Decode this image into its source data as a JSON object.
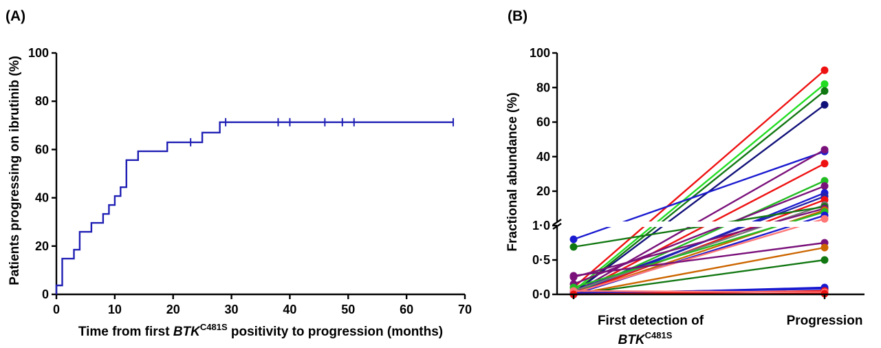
{
  "chart_data": [
    {
      "panel_label": "(A)",
      "type": "line",
      "subtype": "kaplan-meier-step",
      "xlabel_parts": [
        "Time from first ",
        "BTK",
        "C481S",
        " positivity to progression (months)"
      ],
      "ylabel": "Patients progressing on ibrutinib (%)",
      "xlim": [
        0,
        70
      ],
      "ylim": [
        0,
        100
      ],
      "xticks": [
        0,
        10,
        20,
        30,
        40,
        50,
        60,
        70
      ],
      "yticks": [
        0,
        20,
        40,
        60,
        80,
        100
      ],
      "line_color": "#1f1fb4",
      "steps": [
        {
          "x": 0,
          "y": 0
        },
        {
          "x": 0,
          "y": 3.7
        },
        {
          "x": 1,
          "y": 3.7
        },
        {
          "x": 1,
          "y": 14.8
        },
        {
          "x": 3,
          "y": 14.8
        },
        {
          "x": 3,
          "y": 18.5
        },
        {
          "x": 4,
          "y": 18.5
        },
        {
          "x": 4,
          "y": 25.9
        },
        {
          "x": 6,
          "y": 25.9
        },
        {
          "x": 6,
          "y": 29.6
        },
        {
          "x": 8,
          "y": 29.6
        },
        {
          "x": 8,
          "y": 33.3
        },
        {
          "x": 9,
          "y": 33.3
        },
        {
          "x": 9,
          "y": 37.0
        },
        {
          "x": 10,
          "y": 37.0
        },
        {
          "x": 10,
          "y": 40.7
        },
        {
          "x": 11,
          "y": 40.7
        },
        {
          "x": 11,
          "y": 44.4
        },
        {
          "x": 12,
          "y": 44.4
        },
        {
          "x": 12,
          "y": 55.6
        },
        {
          "x": 14,
          "y": 55.6
        },
        {
          "x": 14,
          "y": 59.3
        },
        {
          "x": 19,
          "y": 59.3
        },
        {
          "x": 19,
          "y": 63.0
        },
        {
          "x": 25,
          "y": 63.0
        },
        {
          "x": 25,
          "y": 67.0
        },
        {
          "x": 28,
          "y": 67.0
        },
        {
          "x": 28,
          "y": 71.3
        },
        {
          "x": 68,
          "y": 71.3
        }
      ],
      "censored": [
        {
          "x": 23,
          "y": 63.0
        },
        {
          "x": 29,
          "y": 71.3
        },
        {
          "x": 38,
          "y": 71.3
        },
        {
          "x": 40,
          "y": 71.3
        },
        {
          "x": 46,
          "y": 71.3
        },
        {
          "x": 49,
          "y": 71.3
        },
        {
          "x": 51,
          "y": 71.3
        },
        {
          "x": 68,
          "y": 71.3
        }
      ]
    },
    {
      "panel_label": "(B)",
      "type": "line",
      "subtype": "paired-dot",
      "ylabel": "Fractional abundance (%)",
      "categories": [
        "First detection of",
        "Progression"
      ],
      "category_sub": {
        "prefix": "BTK",
        "superscript": "C481S"
      },
      "y_axis_broken": true,
      "yticks_lower": [
        "0·0",
        "0·5",
        "1·0"
      ],
      "yticks_lower_values": [
        0.0,
        0.5,
        1.0
      ],
      "yticks_upper": [
        "20",
        "40",
        "60",
        "80",
        "100"
      ],
      "yticks_upper_values": [
        20,
        40,
        60,
        80,
        100
      ],
      "series": [
        {
          "color": "#ee1111",
          "values": [
            0.1,
            90
          ]
        },
        {
          "color": "#22dd22",
          "values": [
            0.05,
            82
          ]
        },
        {
          "color": "#117711",
          "values": [
            0.02,
            78
          ]
        },
        {
          "color": "#11117a",
          "values": [
            0.02,
            70
          ]
        },
        {
          "color": "#1a1ad0",
          "values": [
            0.8,
            43
          ]
        },
        {
          "color": "#7a117a",
          "values": [
            0.02,
            44
          ]
        },
        {
          "color": "#ee1111",
          "values": [
            0.0,
            36
          ]
        },
        {
          "color": "#22bb22",
          "values": [
            0.0,
            26
          ]
        },
        {
          "color": "#7a117a",
          "values": [
            0.15,
            23
          ]
        },
        {
          "color": "#1a1ad0",
          "values": [
            0.0,
            19
          ]
        },
        {
          "color": "#2222aa",
          "values": [
            0.05,
            17
          ]
        },
        {
          "color": "#ee1111",
          "values": [
            0.0,
            15
          ]
        },
        {
          "color": "#777777",
          "values": [
            0.05,
            12
          ]
        },
        {
          "color": "#117711",
          "values": [
            0.69,
            11
          ]
        },
        {
          "color": "#7a117a",
          "values": [
            0.25,
            10
          ]
        },
        {
          "color": "#cc6600",
          "values": [
            0.0,
            9
          ]
        },
        {
          "color": "#22bb22",
          "values": [
            0.1,
            8
          ]
        },
        {
          "color": "#1a1ad0",
          "values": [
            0.0,
            6
          ]
        },
        {
          "color": "#ff7777",
          "values": [
            0.02,
            4
          ]
        },
        {
          "color": "#7a117a",
          "values": [
            0.27,
            0.75
          ]
        },
        {
          "color": "#cc6600",
          "values": [
            0.0,
            0.68
          ]
        },
        {
          "color": "#117711",
          "values": [
            0.0,
            0.5
          ]
        },
        {
          "color": "#1a1ad0",
          "values": [
            0.0,
            0.1
          ]
        },
        {
          "color": "#1a1ad0",
          "values": [
            0.02,
            0.08
          ]
        },
        {
          "color": "#ee1111",
          "values": [
            0.0,
            0.05
          ]
        },
        {
          "color": "#ff7777",
          "values": [
            0.05,
            0.03
          ]
        },
        {
          "color": "#ee1111",
          "values": [
            0.0,
            0.01
          ]
        }
      ]
    }
  ]
}
